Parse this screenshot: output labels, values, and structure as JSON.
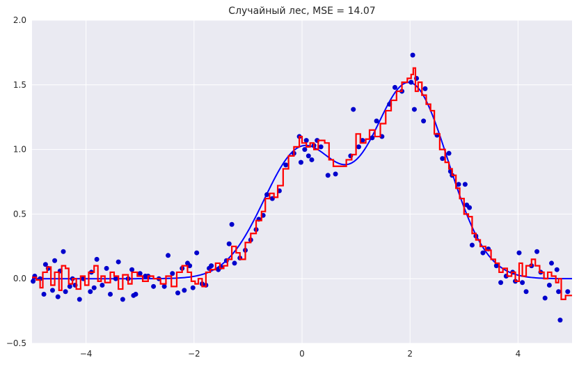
{
  "chart_data": {
    "type": "scatter",
    "title": "Случайный лес, MSE = 14.07",
    "xlabel": "",
    "ylabel": "",
    "xlim": [
      -5,
      5
    ],
    "ylim": [
      -0.5,
      2.0
    ],
    "xticks": [
      -4,
      -2,
      0,
      2,
      4
    ],
    "yticks": [
      -0.5,
      0.0,
      0.5,
      1.0,
      1.5,
      2.0
    ],
    "xtick_labels": [
      "−4",
      "−2",
      "0",
      "2",
      "4"
    ],
    "ytick_labels": [
      "−0.5",
      "0.0",
      "0.5",
      "1.0",
      "1.5",
      "2.0"
    ],
    "grid": true,
    "background_color": "#EAEAF2",
    "grid_color": "#FFFFFF",
    "true_function": {
      "type": "line",
      "color": "#0000FF",
      "description": "sum of two gaussians",
      "x_range": [
        -5,
        5
      ],
      "components": [
        {
          "amplitude": 1.0,
          "center": 0.0,
          "sigma": 0.707
        },
        {
          "amplitude": 1.5,
          "center": 2.0,
          "sigma": 0.707
        }
      ]
    },
    "noisy_points": {
      "type": "scatter",
      "color": "#0000CC",
      "points": [
        [
          -4.98,
          -0.02
        ],
        [
          -4.95,
          0.02
        ],
        [
          -4.85,
          0.0
        ],
        [
          -4.78,
          -0.12
        ],
        [
          -4.75,
          0.11
        ],
        [
          -4.7,
          0.08
        ],
        [
          -4.62,
          -0.09
        ],
        [
          -4.58,
          0.14
        ],
        [
          -4.52,
          -0.14
        ],
        [
          -4.48,
          0.06
        ],
        [
          -4.42,
          0.21
        ],
        [
          -4.38,
          -0.1
        ],
        [
          -4.3,
          -0.06
        ],
        [
          -4.25,
          0.0
        ],
        [
          -4.2,
          -0.05
        ],
        [
          -4.12,
          -0.16
        ],
        [
          -4.05,
          0.0
        ],
        [
          -3.92,
          -0.1
        ],
        [
          -3.9,
          0.05
        ],
        [
          -3.85,
          -0.07
        ],
        [
          -3.8,
          0.15
        ],
        [
          -3.7,
          -0.05
        ],
        [
          -3.62,
          0.08
        ],
        [
          -3.55,
          -0.12
        ],
        [
          -3.45,
          0.0
        ],
        [
          -3.4,
          0.13
        ],
        [
          -3.32,
          -0.16
        ],
        [
          -3.22,
          0.0
        ],
        [
          -3.15,
          0.07
        ],
        [
          -3.12,
          -0.13
        ],
        [
          -3.08,
          -0.12
        ],
        [
          -3.0,
          0.04
        ],
        [
          -2.9,
          0.02
        ],
        [
          -2.85,
          0.02
        ],
        [
          -2.75,
          -0.06
        ],
        [
          -2.65,
          0.0
        ],
        [
          -2.55,
          -0.06
        ],
        [
          -2.48,
          0.18
        ],
        [
          -2.4,
          0.04
        ],
        [
          -2.3,
          -0.11
        ],
        [
          -2.22,
          0.08
        ],
        [
          -2.18,
          -0.09
        ],
        [
          -2.12,
          0.12
        ],
        [
          -2.08,
          0.1
        ],
        [
          -2.02,
          -0.07
        ],
        [
          -1.95,
          0.2
        ],
        [
          -1.85,
          -0.04
        ],
        [
          -1.78,
          -0.05
        ],
        [
          -1.72,
          0.08
        ],
        [
          -1.68,
          0.1
        ],
        [
          -1.55,
          0.07
        ],
        [
          -1.5,
          0.09
        ],
        [
          -1.4,
          0.14
        ],
        [
          -1.35,
          0.27
        ],
        [
          -1.3,
          0.42
        ],
        [
          -1.25,
          0.12
        ],
        [
          -1.15,
          0.16
        ],
        [
          -1.05,
          0.22
        ],
        [
          -0.95,
          0.3
        ],
        [
          -0.85,
          0.38
        ],
        [
          -0.8,
          0.46
        ],
        [
          -0.72,
          0.49
        ],
        [
          -0.65,
          0.65
        ],
        [
          -0.55,
          0.62
        ],
        [
          -0.42,
          0.68
        ],
        [
          -0.3,
          0.88
        ],
        [
          -0.15,
          0.97
        ],
        [
          -0.05,
          1.1
        ],
        [
          -0.02,
          0.9
        ],
        [
          0.05,
          1.0
        ],
        [
          0.08,
          1.07
        ],
        [
          0.12,
          0.95
        ],
        [
          0.18,
          0.92
        ],
        [
          0.22,
          1.03
        ],
        [
          0.28,
          1.07
        ],
        [
          0.35,
          1.02
        ],
        [
          0.48,
          0.8
        ],
        [
          0.62,
          0.81
        ],
        [
          0.9,
          0.95
        ],
        [
          0.95,
          1.31
        ],
        [
          1.05,
          1.02
        ],
        [
          1.12,
          1.07
        ],
        [
          1.3,
          1.09
        ],
        [
          1.38,
          1.22
        ],
        [
          1.48,
          1.1
        ],
        [
          1.62,
          1.35
        ],
        [
          1.72,
          1.48
        ],
        [
          1.85,
          1.45
        ],
        [
          2.02,
          1.52
        ],
        [
          2.05,
          1.73
        ],
        [
          2.08,
          1.31
        ],
        [
          2.12,
          1.55
        ],
        [
          2.25,
          1.22
        ],
        [
          2.28,
          1.47
        ],
        [
          2.5,
          1.11
        ],
        [
          2.6,
          0.93
        ],
        [
          2.72,
          0.97
        ],
        [
          2.75,
          0.83
        ],
        [
          2.78,
          0.8
        ],
        [
          2.9,
          0.73
        ],
        [
          3.02,
          0.73
        ],
        [
          3.05,
          0.57
        ],
        [
          3.1,
          0.55
        ],
        [
          3.15,
          0.26
        ],
        [
          3.22,
          0.33
        ],
        [
          3.35,
          0.2
        ],
        [
          3.45,
          0.23
        ],
        [
          3.6,
          0.1
        ],
        [
          3.68,
          -0.03
        ],
        [
          3.78,
          0.02
        ],
        [
          3.9,
          0.05
        ],
        [
          3.95,
          -0.02
        ],
        [
          4.02,
          0.2
        ],
        [
          4.08,
          -0.03
        ],
        [
          4.15,
          -0.1
        ],
        [
          4.25,
          0.1
        ],
        [
          4.35,
          0.21
        ],
        [
          4.42,
          0.05
        ],
        [
          4.5,
          -0.15
        ],
        [
          4.58,
          -0.05
        ],
        [
          4.62,
          0.12
        ],
        [
          4.72,
          0.07
        ],
        [
          4.75,
          -0.1
        ],
        [
          4.78,
          -0.32
        ],
        [
          4.92,
          -0.1
        ]
      ]
    },
    "prediction": {
      "type": "step-line",
      "color": "#FF0000",
      "points": [
        [
          -5.0,
          0.01
        ],
        [
          -4.92,
          -0.01
        ],
        [
          -4.85,
          -0.07
        ],
        [
          -4.8,
          0.05
        ],
        [
          -4.72,
          0.09
        ],
        [
          -4.65,
          -0.05
        ],
        [
          -4.58,
          0.05
        ],
        [
          -4.5,
          -0.09
        ],
        [
          -4.45,
          0.1
        ],
        [
          -4.38,
          0.08
        ],
        [
          -4.32,
          -0.04
        ],
        [
          -4.25,
          0.0
        ],
        [
          -4.18,
          -0.08
        ],
        [
          -4.1,
          0.02
        ],
        [
          -4.02,
          -0.05
        ],
        [
          -3.95,
          0.05
        ],
        [
          -3.85,
          0.1
        ],
        [
          -3.78,
          -0.02
        ],
        [
          -3.72,
          0.02
        ],
        [
          -3.65,
          -0.03
        ],
        [
          -3.55,
          0.05
        ],
        [
          -3.48,
          0.02
        ],
        [
          -3.4,
          -0.08
        ],
        [
          -3.32,
          0.03
        ],
        [
          -3.22,
          -0.04
        ],
        [
          -3.15,
          0.05
        ],
        [
          -3.05,
          0.02
        ],
        [
          -2.95,
          -0.02
        ],
        [
          -2.85,
          0.02
        ],
        [
          -2.75,
          0.0
        ],
        [
          -2.62,
          -0.04
        ],
        [
          -2.52,
          0.02
        ],
        [
          -2.42,
          -0.06
        ],
        [
          -2.32,
          0.05
        ],
        [
          -2.22,
          0.1
        ],
        [
          -2.12,
          0.05
        ],
        [
          -2.05,
          -0.02
        ],
        [
          -1.98,
          -0.04
        ],
        [
          -1.92,
          0.0
        ],
        [
          -1.85,
          -0.06
        ],
        [
          -1.78,
          0.05
        ],
        [
          -1.7,
          0.07
        ],
        [
          -1.6,
          0.12
        ],
        [
          -1.52,
          0.08
        ],
        [
          -1.45,
          0.1
        ],
        [
          -1.38,
          0.15
        ],
        [
          -1.3,
          0.25
        ],
        [
          -1.22,
          0.2
        ],
        [
          -1.15,
          0.15
        ],
        [
          -1.05,
          0.28
        ],
        [
          -0.95,
          0.35
        ],
        [
          -0.85,
          0.45
        ],
        [
          -0.75,
          0.52
        ],
        [
          -0.68,
          0.62
        ],
        [
          -0.6,
          0.66
        ],
        [
          -0.52,
          0.63
        ],
        [
          -0.45,
          0.72
        ],
        [
          -0.35,
          0.85
        ],
        [
          -0.25,
          0.95
        ],
        [
          -0.15,
          1.02
        ],
        [
          -0.05,
          1.1
        ],
        [
          0.0,
          1.05
        ],
        [
          0.08,
          1.02
        ],
        [
          0.15,
          1.05
        ],
        [
          0.22,
          1.0
        ],
        [
          0.3,
          1.07
        ],
        [
          0.42,
          1.05
        ],
        [
          0.5,
          0.92
        ],
        [
          0.58,
          0.87
        ],
        [
          0.7,
          0.87
        ],
        [
          0.82,
          0.92
        ],
        [
          0.92,
          0.96
        ],
        [
          1.0,
          1.12
        ],
        [
          1.08,
          1.05
        ],
        [
          1.18,
          1.08
        ],
        [
          1.25,
          1.15
        ],
        [
          1.35,
          1.1
        ],
        [
          1.45,
          1.2
        ],
        [
          1.55,
          1.3
        ],
        [
          1.65,
          1.38
        ],
        [
          1.75,
          1.45
        ],
        [
          1.85,
          1.52
        ],
        [
          1.95,
          1.55
        ],
        [
          2.02,
          1.58
        ],
        [
          2.06,
          1.63
        ],
        [
          2.1,
          1.45
        ],
        [
          2.15,
          1.52
        ],
        [
          2.22,
          1.42
        ],
        [
          2.3,
          1.35
        ],
        [
          2.38,
          1.3
        ],
        [
          2.45,
          1.12
        ],
        [
          2.55,
          1.0
        ],
        [
          2.65,
          0.9
        ],
        [
          2.72,
          0.85
        ],
        [
          2.78,
          0.8
        ],
        [
          2.85,
          0.7
        ],
        [
          2.92,
          0.62
        ],
        [
          3.0,
          0.5
        ],
        [
          3.08,
          0.48
        ],
        [
          3.15,
          0.35
        ],
        [
          3.22,
          0.3
        ],
        [
          3.3,
          0.25
        ],
        [
          3.4,
          0.22
        ],
        [
          3.5,
          0.15
        ],
        [
          3.58,
          0.12
        ],
        [
          3.65,
          0.05
        ],
        [
          3.72,
          0.08
        ],
        [
          3.8,
          0.02
        ],
        [
          3.88,
          0.05
        ],
        [
          3.95,
          -0.02
        ],
        [
          4.02,
          0.12
        ],
        [
          4.08,
          0.02
        ],
        [
          4.15,
          0.1
        ],
        [
          4.25,
          0.15
        ],
        [
          4.32,
          0.1
        ],
        [
          4.4,
          0.05
        ],
        [
          4.48,
          0.0
        ],
        [
          4.55,
          0.05
        ],
        [
          4.62,
          0.02
        ],
        [
          4.7,
          -0.03
        ],
        [
          4.75,
          0.0
        ],
        [
          4.8,
          -0.16
        ],
        [
          4.88,
          -0.13
        ],
        [
          5.0,
          -0.13
        ]
      ]
    }
  }
}
